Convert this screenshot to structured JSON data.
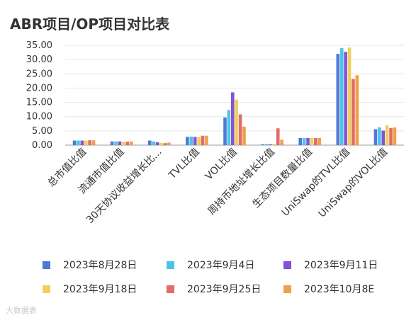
{
  "chart_data": {
    "type": "bar",
    "title": "ABR项目/OP项目对比表",
    "xlabel": "",
    "ylabel": "",
    "ylim": [
      0,
      35
    ],
    "yticks": [
      "0.00",
      "5.00",
      "10.00",
      "15.00",
      "20.00",
      "25.00",
      "30.00",
      "35.00"
    ],
    "grid": true,
    "legend_position": "bottom",
    "categories": [
      "总市值比值",
      "流通市值比值",
      "30天协议收益增长比...",
      "TVL比值",
      "VOL比值",
      "周持币地址增长比值",
      "生态项目数量比值",
      "UniSwap的TVL比值",
      "UniSwap的VOL比值"
    ],
    "series": [
      {
        "name": "2023年8月28日",
        "color": "#4e79d8",
        "values": [
          1.6,
          1.3,
          1.6,
          2.9,
          9.7,
          0.3,
          2.5,
          32.0,
          5.6
        ]
      },
      {
        "name": "2023年9月4日",
        "color": "#4dc4e6",
        "values": [
          1.6,
          1.3,
          1.3,
          3.0,
          12.3,
          0.4,
          2.5,
          34.0,
          6.2
        ]
      },
      {
        "name": "2023年9月11日",
        "color": "#8452d6",
        "values": [
          1.6,
          1.3,
          1.0,
          2.9,
          18.5,
          0.3,
          2.5,
          32.7,
          5.1
        ]
      },
      {
        "name": "2023年9月18日",
        "color": "#eed05c",
        "values": [
          1.6,
          1.2,
          0.8,
          2.8,
          16.0,
          0.4,
          2.5,
          34.2,
          7.0
        ]
      },
      {
        "name": "2023年9月25日",
        "color": "#e36a66",
        "values": [
          1.7,
          1.2,
          0.7,
          3.3,
          10.8,
          5.9,
          2.5,
          23.2,
          6.0
        ]
      },
      {
        "name": "2023年10月8E",
        "color": "#f0a04a",
        "values": [
          1.7,
          1.3,
          0.9,
          3.3,
          6.5,
          1.9,
          2.5,
          24.5,
          6.2
        ]
      }
    ]
  },
  "watermark": "大数据表"
}
